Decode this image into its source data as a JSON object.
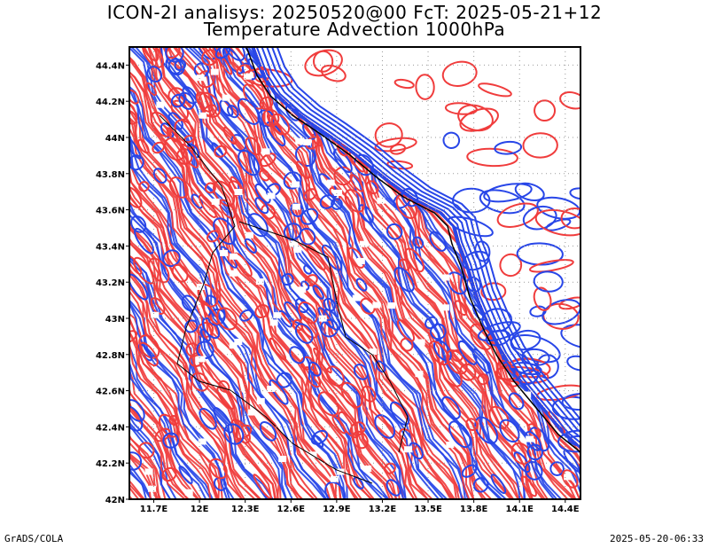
{
  "title_line1": "ICON-2I analisys: 20250520@00 FcT: 2025-05-21+12",
  "title_line2": "Temperature Advection 1000hPa",
  "footer_left": "GrADS/COLA",
  "footer_right": "2025-05-20-06:33",
  "colors": {
    "warm": "#f03c3c",
    "cold": "#2846e8",
    "grid": "#9a9a9a",
    "border": "#000000"
  },
  "map": {
    "lon_ticks": [
      "11.7E",
      "12E",
      "12.3E",
      "12.6E",
      "12.9E",
      "13.2E",
      "13.5E",
      "13.8E",
      "14.1E",
      "14.4E"
    ],
    "lat_ticks": [
      "44.4N",
      "44.2N",
      "44N",
      "43.8N",
      "43.6N",
      "43.4N",
      "43.2N",
      "43N",
      "42.8N",
      "42.6N",
      "42.4N",
      "42.2N",
      "42N"
    ],
    "lon_range": [
      11.54,
      14.5
    ],
    "lat_range": [
      42.0,
      44.5
    ]
  }
}
